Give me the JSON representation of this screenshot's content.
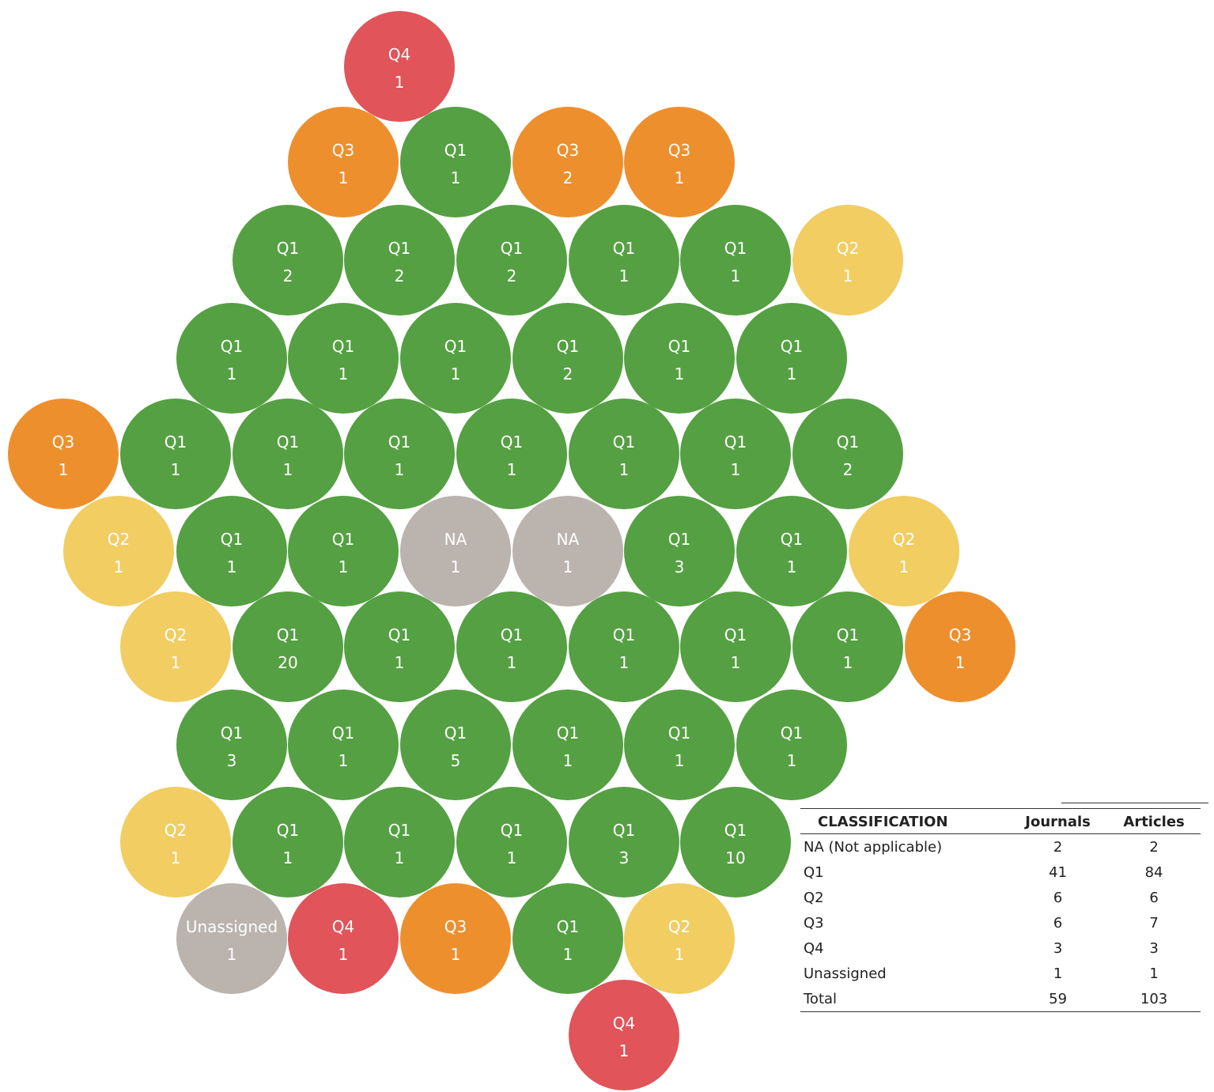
{
  "colors": {
    "Q1": "#55a043",
    "Q2": "#f1cd62",
    "Q3": "#ee8f2d",
    "Q4": "#e0545a",
    "NA": "#bab3ae",
    "Unassigned": "#bab3ae"
  },
  "bubbles": [
    {
      "label": "Q4",
      "value": "1"
    },
    {
      "label": "Q3",
      "value": "1"
    },
    {
      "label": "Q1",
      "value": "1"
    },
    {
      "label": "Q3",
      "value": "2"
    },
    {
      "label": "Q3",
      "value": "1"
    },
    {
      "label": "Q1",
      "value": "2"
    },
    {
      "label": "Q1",
      "value": "2"
    },
    {
      "label": "Q1",
      "value": "2"
    },
    {
      "label": "Q1",
      "value": "1"
    },
    {
      "label": "Q1",
      "value": "1"
    },
    {
      "label": "Q2",
      "value": "1"
    },
    {
      "label": "Q1",
      "value": "1"
    },
    {
      "label": "Q1",
      "value": "1"
    },
    {
      "label": "Q1",
      "value": "1"
    },
    {
      "label": "Q1",
      "value": "2"
    },
    {
      "label": "Q1",
      "value": "1"
    },
    {
      "label": "Q1",
      "value": "1"
    },
    {
      "label": "Q3",
      "value": "1"
    },
    {
      "label": "Q1",
      "value": "1"
    },
    {
      "label": "Q1",
      "value": "1"
    },
    {
      "label": "Q1",
      "value": "1"
    },
    {
      "label": "Q1",
      "value": "1"
    },
    {
      "label": "Q1",
      "value": "1"
    },
    {
      "label": "Q1",
      "value": "1"
    },
    {
      "label": "Q1",
      "value": "2"
    },
    {
      "label": "Q2",
      "value": "1"
    },
    {
      "label": "Q1",
      "value": "1"
    },
    {
      "label": "Q1",
      "value": "1"
    },
    {
      "label": "NA",
      "value": "1"
    },
    {
      "label": "NA",
      "value": "1"
    },
    {
      "label": "Q1",
      "value": "3"
    },
    {
      "label": "Q1",
      "value": "1"
    },
    {
      "label": "Q2",
      "value": "1"
    },
    {
      "label": "Q2",
      "value": "1"
    },
    {
      "label": "Q1",
      "value": "20"
    },
    {
      "label": "Q1",
      "value": "1"
    },
    {
      "label": "Q1",
      "value": "1"
    },
    {
      "label": "Q1",
      "value": "1"
    },
    {
      "label": "Q1",
      "value": "1"
    },
    {
      "label": "Q1",
      "value": "1"
    },
    {
      "label": "Q3",
      "value": "1"
    },
    {
      "label": "Q1",
      "value": "3"
    },
    {
      "label": "Q1",
      "value": "1"
    },
    {
      "label": "Q1",
      "value": "5"
    },
    {
      "label": "Q1",
      "value": "1"
    },
    {
      "label": "Q1",
      "value": "1"
    },
    {
      "label": "Q1",
      "value": "1"
    },
    {
      "label": "Q2",
      "value": "1"
    },
    {
      "label": "Q1",
      "value": "1"
    },
    {
      "label": "Q1",
      "value": "1"
    },
    {
      "label": "Q1",
      "value": "1"
    },
    {
      "label": "Q1",
      "value": "3"
    },
    {
      "label": "Q1",
      "value": "10"
    },
    {
      "label": "Unassigned",
      "value": "1"
    },
    {
      "label": "Q4",
      "value": "1"
    },
    {
      "label": "Q3",
      "value": "1"
    },
    {
      "label": "Q1",
      "value": "1"
    },
    {
      "label": "Q2",
      "value": "1"
    },
    {
      "label": "Q4",
      "value": "1"
    }
  ],
  "table": {
    "headers": [
      "CLASSIFICATION",
      "Journals",
      "Articles"
    ],
    "rows": [
      [
        "NA (Not applicable)",
        "2",
        "2"
      ],
      [
        "Q1",
        "41",
        "84"
      ],
      [
        "Q2",
        "6",
        "6"
      ],
      [
        "Q3",
        "6",
        "7"
      ],
      [
        "Q4",
        "3",
        "3"
      ],
      [
        "Unassigned",
        "1",
        "1"
      ],
      [
        "Total",
        "59",
        "103"
      ]
    ]
  }
}
